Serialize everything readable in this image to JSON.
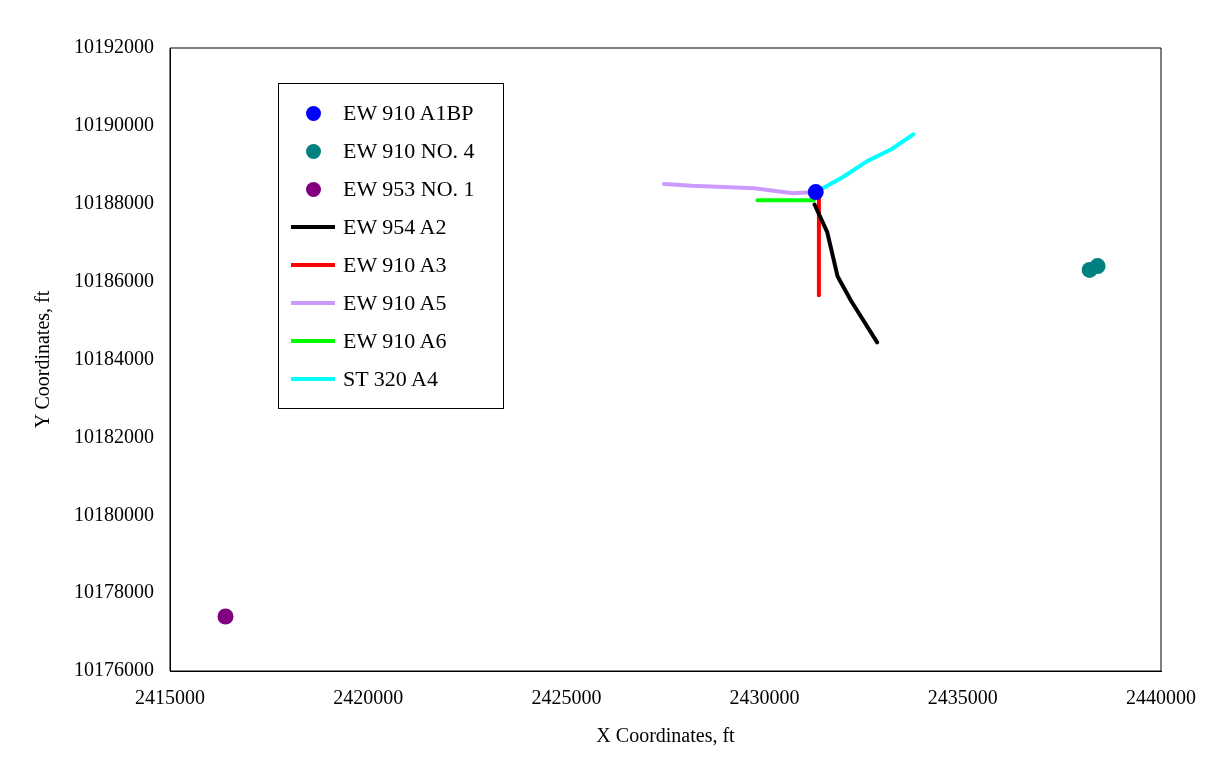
{
  "chart_data": {
    "type": "scatter",
    "xlabel": "X Coordinates, ft",
    "ylabel": "Y Coordinates, ft",
    "xlim": [
      2415000,
      2440000
    ],
    "xticks": [
      2415000,
      2420000,
      2425000,
      2430000,
      2435000,
      2440000
    ],
    "ylim": [
      10176000,
      10192000
    ],
    "yticks": [
      10176000,
      10178000,
      10180000,
      10182000,
      10184000,
      10186000,
      10188000,
      10190000,
      10192000
    ],
    "grid": false,
    "legend": "top left",
    "series": [
      {
        "name": "EW 910 A1BP",
        "color": "#0000ff",
        "marker": "circle",
        "x": [
          2431290
        ],
        "values": [
          10188300
        ]
      },
      {
        "name": "EW 910 NO. 4",
        "color": "#008080",
        "marker": "circle",
        "x": [
          2438200,
          2438400
        ],
        "values": [
          10186300,
          10186400
        ]
      },
      {
        "name": "EW 953 NO. 1",
        "color": "#800080",
        "marker": "circle",
        "x": [
          2416400
        ],
        "values": [
          10177400
        ]
      },
      {
        "name": "EW 954 A2",
        "color": "#000000",
        "type": "line",
        "x": [
          2431260,
          2431580,
          2431840,
          2432180,
          2432840
        ],
        "values": [
          10187980,
          10187270,
          10186140,
          10185510,
          10184440
        ]
      },
      {
        "name": "EW 910 A3",
        "color": "#ff0000",
        "type": "line",
        "x": [
          2431370,
          2431370
        ],
        "values": [
          10188300,
          10185650
        ]
      },
      {
        "name": "EW 910 A5",
        "color": "#cc99ff",
        "type": "line",
        "x": [
          2427460,
          2428170,
          2429740,
          2430710,
          2431290
        ],
        "values": [
          10188510,
          10188460,
          10188400,
          10188270,
          10188300
        ]
      },
      {
        "name": "EW 910 A6",
        "color": "#00ff00",
        "type": "line",
        "x": [
          2429820,
          2431240
        ],
        "values": [
          10188090,
          10188090
        ]
      },
      {
        "name": "ST 320 A4",
        "color": "#00ffff",
        "type": "line",
        "x": [
          2431300,
          2432000,
          2432600,
          2433200,
          2433750
        ],
        "values": [
          10188300,
          10188700,
          10189100,
          10189400,
          10189780
        ]
      }
    ]
  }
}
